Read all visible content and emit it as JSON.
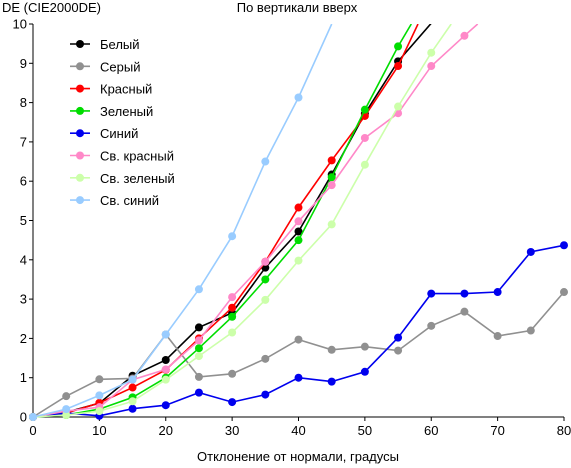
{
  "chart_data": {
    "type": "line",
    "title": "По вертикали вверх",
    "ylabel": "DE (CIE2000DE)",
    "xlabel": "Отклонение от нормали, градусы",
    "xlim": [
      0,
      80
    ],
    "ylim": [
      0,
      10
    ],
    "xticks": [
      "0",
      "10",
      "20",
      "30",
      "40",
      "50",
      "60",
      "70",
      "80"
    ],
    "yticks": [
      "0",
      "1",
      "2",
      "3",
      "4",
      "5",
      "6",
      "7",
      "8",
      "9",
      "10"
    ],
    "grid": false,
    "legend_position": "top-left",
    "series": [
      {
        "name": "Белый",
        "color": "#000000",
        "x": [
          0,
          5,
          10,
          15,
          20,
          25,
          30,
          35,
          40,
          45,
          50,
          55,
          60
        ],
        "y": [
          0,
          0.12,
          0.35,
          1.05,
          1.45,
          2.28,
          2.65,
          3.8,
          4.72,
          6.17,
          7.72,
          9.05,
          10.02
        ]
      },
      {
        "name": "Серый",
        "color": "#909090",
        "x": [
          0,
          5,
          10,
          15,
          20,
          25,
          30,
          35,
          40,
          45,
          50,
          55,
          60,
          65,
          70,
          75,
          80
        ],
        "y": [
          0,
          0.53,
          0.96,
          0.98,
          2.1,
          1.02,
          1.1,
          1.48,
          1.97,
          1.71,
          1.79,
          1.69,
          2.32,
          2.68,
          2.06,
          2.2,
          3.18
        ]
      },
      {
        "name": "Красный",
        "color": "#ff0000",
        "x": [
          0,
          5,
          10,
          15,
          20,
          25,
          30,
          35,
          40,
          45,
          50,
          55,
          58
        ],
        "y": [
          0,
          0.1,
          0.36,
          0.75,
          1.2,
          2.0,
          2.78,
          3.95,
          5.33,
          6.53,
          7.66,
          8.93,
          10.0
        ]
      },
      {
        "name": "Зеленый",
        "color": "#00dd00",
        "x": [
          0,
          5,
          10,
          15,
          20,
          25,
          30,
          35,
          40,
          45,
          50,
          55,
          57
        ],
        "y": [
          0,
          0.05,
          0.2,
          0.5,
          1.0,
          1.75,
          2.55,
          3.5,
          4.5,
          6.1,
          7.82,
          9.43,
          10.0
        ]
      },
      {
        "name": "Синий",
        "color": "#0000ee",
        "x": [
          0,
          5,
          10,
          15,
          20,
          25,
          30,
          35,
          40,
          45,
          50,
          55,
          60,
          65,
          70,
          75,
          80
        ],
        "y": [
          0,
          0.1,
          0.03,
          0.21,
          0.3,
          0.62,
          0.38,
          0.57,
          1.0,
          0.9,
          1.15,
          2.02,
          3.14,
          3.14,
          3.18,
          4.2,
          4.37
        ]
      },
      {
        "name": "Св. красный",
        "color": "#ff88c8",
        "x": [
          0,
          5,
          10,
          15,
          20,
          25,
          30,
          35,
          40,
          45,
          50,
          55,
          60,
          65,
          67
        ],
        "y": [
          0,
          0.15,
          0.25,
          0.95,
          1.21,
          1.95,
          3.05,
          3.95,
          4.98,
          5.9,
          7.1,
          7.73,
          8.93,
          9.7,
          10.0
        ]
      },
      {
        "name": "Св. зеленый",
        "color": "#ccffaa",
        "x": [
          0,
          5,
          10,
          15,
          20,
          25,
          30,
          35,
          40,
          45,
          50,
          55,
          60,
          63
        ],
        "y": [
          0,
          0.05,
          0.15,
          0.4,
          0.95,
          1.55,
          2.15,
          2.98,
          3.98,
          4.9,
          6.42,
          7.9,
          9.27,
          10.0
        ]
      },
      {
        "name": "Св. синий",
        "color": "#99ccff",
        "x": [
          0,
          5,
          10,
          15,
          20,
          25,
          30,
          35,
          40,
          45
        ],
        "y": [
          0,
          0.2,
          0.55,
          0.95,
          2.1,
          3.25,
          4.6,
          6.5,
          8.13,
          10.0
        ]
      }
    ]
  }
}
